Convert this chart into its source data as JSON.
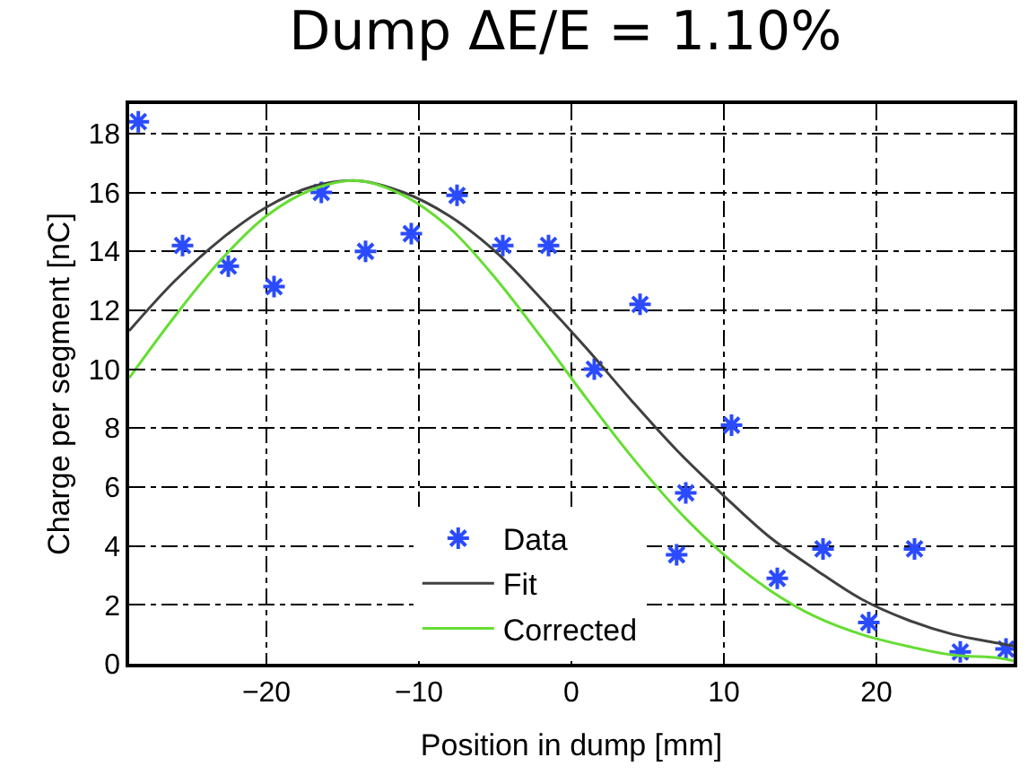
{
  "chart_data": {
    "type": "scatter",
    "title": "Dump ΔE/E = 1.10%",
    "xlabel": "Position in dump [mm]",
    "ylabel": "Charge per segment [nC]",
    "xlim": [
      -29,
      29
    ],
    "xticks": [
      -20,
      -10,
      0,
      10,
      20
    ],
    "ylim": [
      0,
      19
    ],
    "yticks": [
      0,
      2,
      4,
      6,
      8,
      10,
      12,
      14,
      16,
      18
    ],
    "grid": true,
    "legend": "bottom right",
    "series": [
      {
        "name": "Data",
        "marker": "cross",
        "color": "#2a4bff",
        "x": [
          -28.4,
          -25.5,
          -22.5,
          -19.5,
          -16.4,
          -13.5,
          -10.5,
          -7.5,
          -4.5,
          -1.5,
          1.5,
          4.5,
          6.9,
          7.5,
          10.5,
          13.5,
          16.5,
          19.5,
          22.5,
          25.5,
          28.5
        ],
        "values": [
          18.4,
          14.2,
          13.5,
          12.8,
          16.0,
          14.0,
          14.6,
          15.9,
          14.2,
          14.2,
          10.0,
          12.2,
          3.7,
          5.8,
          8.1,
          2.9,
          3.9,
          1.4,
          3.9,
          0.4,
          0.5
        ]
      },
      {
        "name": "Fit",
        "type": "line",
        "line_style": "solid",
        "color": "#404040",
        "x": [
          -29,
          -26,
          -23,
          -20,
          -17,
          -14,
          -11,
          -8,
          -5,
          -2,
          1,
          4,
          7,
          10,
          13,
          16,
          19,
          22,
          25,
          28,
          29
        ],
        "values": [
          11.3,
          13.0,
          14.4,
          15.5,
          16.2,
          16.4,
          16.0,
          15.2,
          14.0,
          12.4,
          10.7,
          8.9,
          7.2,
          5.7,
          4.3,
          3.2,
          2.2,
          1.5,
          1.0,
          0.7,
          0.6
        ]
      },
      {
        "name": "Corrected",
        "type": "line",
        "line_style": "solid",
        "color": "#66dd33",
        "x": [
          -29,
          -26,
          -23,
          -20,
          -17,
          -14,
          -11,
          -8,
          -5,
          -2,
          1,
          4,
          7,
          10,
          13,
          16,
          19,
          22,
          25,
          28,
          29
        ],
        "values": [
          9.7,
          11.8,
          13.7,
          15.2,
          16.1,
          16.4,
          15.9,
          14.8,
          13.1,
          11.1,
          9.0,
          7.0,
          5.2,
          3.7,
          2.5,
          1.6,
          1.0,
          0.6,
          0.3,
          0.2,
          0.1
        ]
      }
    ]
  }
}
